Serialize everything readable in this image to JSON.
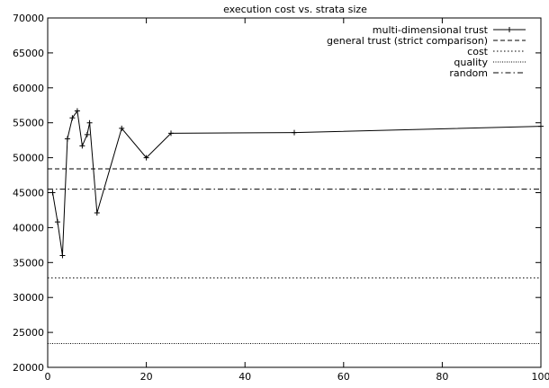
{
  "chart_data": {
    "type": "line",
    "title": "execution cost vs. strata size",
    "xlabel": "",
    "ylabel": "",
    "xlim": [
      0,
      100
    ],
    "ylim": [
      20000,
      70000
    ],
    "x_ticks": [
      0,
      20,
      40,
      60,
      80,
      100
    ],
    "y_ticks": [
      20000,
      25000,
      30000,
      35000,
      40000,
      45000,
      50000,
      55000,
      60000,
      65000,
      70000
    ],
    "grid": false,
    "legend_position": "top-right",
    "series": [
      {
        "name": "multi-dimensional trust",
        "style": "solid-with-plus-markers",
        "x": [
          1,
          2,
          3,
          4,
          5,
          6,
          7,
          8,
          8.5,
          10,
          15,
          20,
          25,
          50,
          100
        ],
        "y": [
          45000,
          40800,
          36000,
          52700,
          55700,
          56700,
          51700,
          53300,
          55000,
          42100,
          54200,
          50000,
          53500,
          53600,
          54500
        ]
      },
      {
        "name": "general trust (strict comparison)",
        "style": "dashed",
        "x": [
          0,
          100
        ],
        "y": [
          48400,
          48400
        ]
      },
      {
        "name": "cost",
        "style": "dotted",
        "x": [
          0,
          100
        ],
        "y": [
          32800,
          32800
        ]
      },
      {
        "name": "quality",
        "style": "fine-dotted",
        "x": [
          0,
          100
        ],
        "y": [
          23400,
          23400
        ]
      },
      {
        "name": "random",
        "style": "dash-dot",
        "x": [
          0,
          100
        ],
        "y": [
          45500,
          45500
        ]
      }
    ]
  }
}
